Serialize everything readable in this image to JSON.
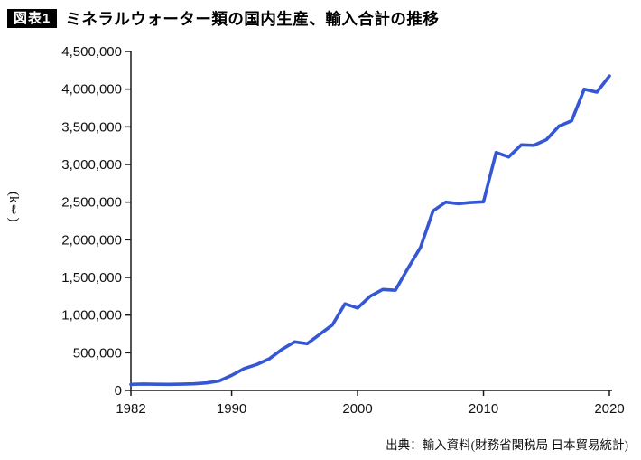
{
  "header": {
    "badge": "図表1",
    "title": "ミネラルウォーター類の国内生産、輸入合計の推移"
  },
  "y_unit": "(kℓ)",
  "source": "出典：輸入資料(財務省関税局 日本貿易統計)",
  "chart_data": {
    "type": "line",
    "title": "ミネラルウォーター類の国内生産、輸入合計の推移",
    "xlabel": "",
    "ylabel": "(kℓ)",
    "ylim": [
      0,
      4500000
    ],
    "ytick_step": 500000,
    "xticks": [
      1982,
      1990,
      2000,
      2010,
      2020
    ],
    "grid": false,
    "legend": "none",
    "line_color": "#3557d4",
    "axis_color": "#1a1a1a",
    "x": [
      1982,
      1983,
      1984,
      1985,
      1986,
      1987,
      1988,
      1989,
      1990,
      1991,
      1992,
      1993,
      1994,
      1995,
      1996,
      1997,
      1998,
      1999,
      2000,
      2001,
      2002,
      2003,
      2004,
      2005,
      2006,
      2007,
      2008,
      2009,
      2010,
      2011,
      2012,
      2013,
      2014,
      2015,
      2016,
      2017,
      2018,
      2019,
      2020
    ],
    "values": [
      80000,
      85000,
      82000,
      80000,
      83000,
      88000,
      100000,
      125000,
      200000,
      290000,
      345000,
      420000,
      545000,
      645000,
      620000,
      745000,
      870000,
      1150000,
      1095000,
      1250000,
      1340000,
      1330000,
      1620000,
      1900000,
      2385000,
      2500000,
      2480000,
      2495000,
      2505000,
      3160000,
      3100000,
      3260000,
      3255000,
      3330000,
      3510000,
      3580000,
      4000000,
      3960000,
      4175000
    ]
  }
}
